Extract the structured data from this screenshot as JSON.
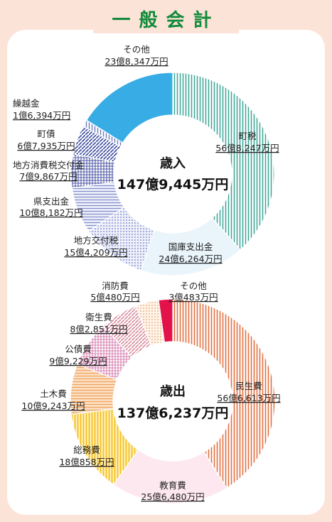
{
  "title": "一般会計",
  "colors": {
    "background": "#fbe3d7",
    "panel": "#ffffff",
    "title_green": "#118a3a"
  },
  "chart_data": [
    {
      "type": "pie",
      "center_title": "歳入",
      "center_total": "147億9,445万円",
      "slices": [
        {
          "label": "町税",
          "value_text": "56億8,247万円",
          "value": 568247,
          "color": "#47b3a3",
          "pattern": "vlines"
        },
        {
          "label": "国庫支出金",
          "value_text": "24億6,264万円",
          "value": 246264,
          "color": "#cfe8f7",
          "pattern": "solid"
        },
        {
          "label": "地方交付税",
          "value_text": "15億4,209万円",
          "value": 154209,
          "color": "#8f9bd6",
          "pattern": "dots"
        },
        {
          "label": "県支出金",
          "value_text": "10億8,182万円",
          "value": 108182,
          "color": "#7f8cc9",
          "pattern": "hlines"
        },
        {
          "label": "地方消費税交付金",
          "value_text": "7億9,867万円",
          "value": 79867,
          "color": "#4e5aa6",
          "pattern": "grid"
        },
        {
          "label": "町債",
          "value_text": "6億7,935万円",
          "value": 67935,
          "color": "#3a4a9e",
          "pattern": "diag"
        },
        {
          "label": "繰越金",
          "value_text": "1億6,394万円",
          "value": 16394,
          "color": "#6a7bbd",
          "pattern": "vlines"
        },
        {
          "label": "その他",
          "value_text": "23億8,347万円",
          "value": 238347,
          "color": "#38ace4",
          "pattern": "solid"
        }
      ]
    },
    {
      "type": "pie",
      "center_title": "歳出",
      "center_total": "137億6,237万円",
      "slices": [
        {
          "label": "民生費",
          "value_text": "56億6,613万円",
          "value": 566613,
          "color": "#e1703f",
          "pattern": "vlines"
        },
        {
          "label": "教育費",
          "value_text": "25億6,480万円",
          "value": 256480,
          "color": "#fde8f0",
          "pattern": "solid"
        },
        {
          "label": "総務費",
          "value_text": "18億858万円",
          "value": 180858,
          "color": "#f5c530",
          "pattern": "vlines"
        },
        {
          "label": "土木費",
          "value_text": "10億9,243万円",
          "value": 109243,
          "color": "#f2a86a",
          "pattern": "hlines"
        },
        {
          "label": "公債費",
          "value_text": "9億9,229万円",
          "value": 99229,
          "color": "#d77fb0",
          "pattern": "grid"
        },
        {
          "label": "衛生費",
          "value_text": "8億2,851万円",
          "value": 82851,
          "color": "#d88a9c",
          "pattern": "diag"
        },
        {
          "label": "消防費",
          "value_text": "5億480万円",
          "value": 50480,
          "color": "#f2c9a4",
          "pattern": "dots"
        },
        {
          "label": "その他",
          "value_text": "3億483万円",
          "value": 30483,
          "color": "#e3124b",
          "pattern": "solid"
        }
      ]
    }
  ]
}
